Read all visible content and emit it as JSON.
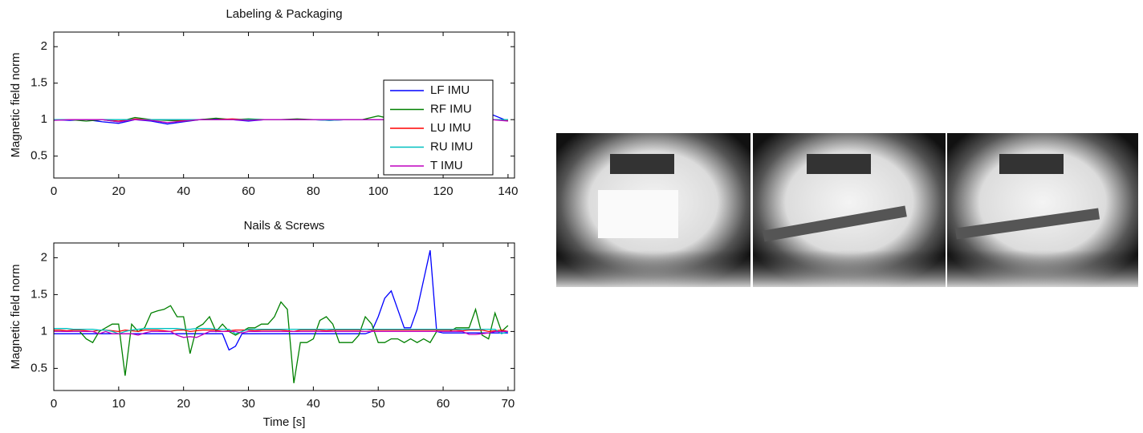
{
  "chart_data": [
    {
      "type": "line",
      "title": "Labeling & Packaging",
      "ylabel": "Magnetic field norm",
      "xlim": [
        0,
        142
      ],
      "xticks": [
        0,
        20,
        40,
        60,
        80,
        100,
        120,
        140
      ],
      "ylim": [
        0.2,
        2.2
      ],
      "yticks": [
        0.5,
        1,
        1.5,
        2
      ],
      "legend": "right",
      "x": [
        0,
        5,
        10,
        15,
        20,
        25,
        30,
        35,
        40,
        45,
        50,
        55,
        60,
        65,
        70,
        75,
        80,
        85,
        90,
        95,
        100,
        105,
        110,
        115,
        120,
        125,
        130,
        135,
        140
      ],
      "series": [
        {
          "name": "LF IMU",
          "color": "#0000ff",
          "values": [
            1.0,
            0.99,
            1.0,
            0.97,
            0.95,
            1.0,
            0.98,
            0.94,
            0.97,
            1.0,
            1.01,
            1.0,
            0.98,
            1.0,
            1.0,
            1.0,
            1.0,
            0.99,
            1.0,
            1.0,
            1.0,
            1.0,
            1.0,
            1.0,
            1.0,
            1.0,
            1.0,
            1.07,
            0.98
          ]
        },
        {
          "name": "RF IMU",
          "color": "#008000",
          "values": [
            1.0,
            1.0,
            0.98,
            1.0,
            0.97,
            1.03,
            1.0,
            0.99,
            0.98,
            1.0,
            1.02,
            1.0,
            1.01,
            1.0,
            1.0,
            1.01,
            1.0,
            1.0,
            1.0,
            1.0,
            1.05,
            1.0,
            1.0,
            1.0,
            1.0,
            1.0,
            1.0,
            1.0,
            1.0
          ]
        },
        {
          "name": "LU IMU",
          "color": "#ff0000",
          "values": [
            1.0,
            1.0,
            1.0,
            1.0,
            0.98,
            1.01,
            1.0,
            1.0,
            0.99,
            1.0,
            1.0,
            1.01,
            1.0,
            1.0,
            1.0,
            1.0,
            1.0,
            1.0,
            1.0,
            1.0,
            1.0,
            1.0,
            1.0,
            1.0,
            1.0,
            1.0,
            1.0,
            1.0,
            0.99
          ]
        },
        {
          "name": "RU IMU",
          "color": "#00bfbf",
          "values": [
            1.0,
            1.0,
            1.0,
            1.0,
            1.0,
            1.0,
            1.0,
            1.0,
            1.0,
            1.0,
            1.0,
            1.0,
            1.0,
            1.0,
            1.0,
            1.0,
            1.0,
            0.99,
            1.0,
            1.0,
            1.0,
            1.0,
            1.0,
            1.0,
            1.0,
            1.0,
            1.0,
            1.0,
            1.0
          ]
        },
        {
          "name": "T IMU",
          "color": "#bf00bf",
          "values": [
            0.99,
            1.0,
            1.0,
            1.0,
            0.97,
            1.0,
            0.99,
            0.96,
            0.98,
            1.0,
            1.0,
            1.0,
            0.99,
            1.0,
            1.0,
            1.0,
            1.0,
            1.0,
            1.0,
            1.0,
            1.0,
            1.0,
            1.0,
            1.0,
            1.0,
            1.0,
            1.0,
            1.0,
            0.98
          ]
        }
      ]
    },
    {
      "type": "line",
      "title": "Nails & Screws",
      "ylabel": "Magnetic field norm",
      "xlabel": "Time [s]",
      "xlim": [
        0,
        71
      ],
      "xticks": [
        0,
        10,
        20,
        30,
        40,
        50,
        60,
        70
      ],
      "ylim": [
        0.2,
        2.2
      ],
      "yticks": [
        0.5,
        1,
        1.5,
        2
      ],
      "x": [
        0,
        1,
        2,
        3,
        4,
        5,
        6,
        7,
        8,
        9,
        10,
        11,
        12,
        13,
        14,
        15,
        16,
        17,
        18,
        19,
        20,
        21,
        22,
        23,
        24,
        25,
        26,
        27,
        28,
        29,
        30,
        31,
        32,
        33,
        34,
        35,
        36,
        37,
        38,
        39,
        40,
        41,
        42,
        43,
        44,
        45,
        46,
        47,
        48,
        49,
        50,
        51,
        52,
        53,
        54,
        55,
        56,
        57,
        58,
        59,
        60,
        61,
        62,
        63,
        64,
        65,
        66,
        67,
        68,
        69,
        70
      ],
      "series": [
        {
          "color": "#0000ff",
          "values": [
            0.97,
            0.97,
            0.97,
            0.97,
            0.97,
            0.97,
            0.97,
            0.97,
            0.97,
            0.97,
            0.97,
            0.97,
            0.97,
            0.97,
            0.97,
            0.97,
            0.97,
            0.97,
            0.97,
            0.97,
            0.97,
            0.97,
            0.97,
            0.97,
            0.97,
            0.97,
            0.97,
            0.75,
            0.8,
            0.97,
            0.97,
            0.97,
            0.97,
            0.97,
            0.97,
            0.97,
            0.97,
            0.97,
            0.97,
            0.97,
            0.97,
            0.97,
            0.97,
            0.97,
            0.97,
            0.97,
            0.97,
            0.97,
            0.97,
            1.0,
            1.2,
            1.45,
            1.55,
            1.3,
            1.05,
            1.05,
            1.3,
            1.7,
            2.1,
            1.0,
            0.98,
            0.98,
            0.98,
            0.98,
            0.98,
            0.98,
            0.98,
            0.98,
            0.98,
            0.98,
            0.98
          ]
        },
        {
          "color": "#008000",
          "values": [
            1.0,
            1.0,
            1.0,
            1.0,
            1.0,
            0.9,
            0.85,
            1.0,
            1.05,
            1.1,
            1.1,
            0.4,
            1.1,
            1.0,
            1.05,
            1.25,
            1.28,
            1.3,
            1.35,
            1.2,
            1.2,
            0.7,
            1.05,
            1.1,
            1.2,
            1.0,
            1.1,
            1.0,
            0.95,
            1.0,
            1.05,
            1.05,
            1.1,
            1.1,
            1.2,
            1.4,
            1.3,
            0.3,
            0.85,
            0.85,
            0.9,
            1.15,
            1.2,
            1.1,
            0.85,
            0.85,
            0.85,
            0.95,
            1.2,
            1.1,
            0.85,
            0.85,
            0.9,
            0.9,
            0.85,
            0.9,
            0.85,
            0.9,
            0.85,
            1.0,
            1.0,
            1.0,
            1.05,
            1.05,
            1.05,
            1.3,
            0.95,
            0.9,
            1.25,
            1.0,
            1.08
          ]
        },
        {
          "color": "#ff0000",
          "values": [
            1.02,
            1.02,
            1.01,
            1.02,
            1.02,
            1.01,
            1.0,
            1.02,
            1.02,
            1.01,
            1.0,
            1.02,
            1.01,
            1.0,
            1.02,
            1.02,
            1.02,
            1.01,
            1.0,
            1.02,
            1.02,
            1.0,
            1.01,
            1.02,
            1.02,
            1.02,
            1.0,
            1.01,
            1.02,
            1.02,
            1.02,
            1.01,
            1.02,
            1.02,
            1.02,
            1.02,
            1.01,
            1.0,
            1.02,
            1.02,
            1.02,
            1.02,
            1.01,
            1.02,
            1.02,
            1.02,
            1.02,
            1.02,
            1.03,
            1.02,
            1.02,
            1.02,
            1.02,
            1.02,
            1.02,
            1.02,
            1.02,
            1.02,
            1.02,
            1.02,
            1.02,
            1.02,
            1.02,
            1.01,
            1.02,
            1.02,
            1.02,
            1.0,
            1.01,
            1.02,
            1.0
          ]
        },
        {
          "color": "#00bfbf",
          "values": [
            1.04,
            1.04,
            1.04,
            1.03,
            1.03,
            1.03,
            1.03,
            1.02,
            1.02,
            1.0,
            0.97,
            1.0,
            1.02,
            1.03,
            1.04,
            1.04,
            1.04,
            1.04,
            1.04,
            1.04,
            1.03,
            1.03,
            1.04,
            1.04,
            1.04,
            1.03,
            1.03,
            1.03,
            0.97,
            1.0,
            1.03,
            1.03,
            1.03,
            1.03,
            1.03,
            1.03,
            1.03,
            1.03,
            1.03,
            1.03,
            1.03,
            1.03,
            1.03,
            1.03,
            1.03,
            1.03,
            1.03,
            1.03,
            1.03,
            1.03,
            1.03,
            1.03,
            1.03,
            1.03,
            1.03,
            1.03,
            1.03,
            1.03,
            1.03,
            1.03,
            1.03,
            1.03,
            1.03,
            1.03,
            1.03,
            1.03,
            1.03,
            1.03,
            1.03,
            0.97,
            1.0
          ]
        },
        {
          "color": "#bf00bf",
          "values": [
            1.0,
            1.0,
            1.0,
            1.0,
            1.0,
            1.0,
            1.0,
            0.97,
            1.0,
            0.97,
            0.97,
            0.97,
            0.97,
            0.95,
            0.98,
            1.0,
            1.0,
            1.0,
            1.0,
            0.95,
            0.92,
            0.93,
            0.92,
            0.96,
            1.0,
            1.0,
            1.0,
            1.0,
            1.0,
            0.98,
            1.0,
            1.0,
            1.0,
            1.0,
            1.0,
            1.0,
            1.0,
            1.0,
            1.0,
            1.0,
            1.0,
            1.0,
            1.0,
            1.0,
            1.0,
            1.0,
            1.0,
            1.0,
            1.0,
            1.0,
            1.0,
            1.0,
            1.0,
            1.0,
            1.0,
            1.0,
            1.0,
            1.0,
            1.0,
            1.0,
            1.0,
            1.0,
            1.0,
            1.0,
            0.96,
            0.96,
            0.97,
            0.98,
            1.0,
            1.0,
            1.0
          ]
        }
      ]
    }
  ]
}
